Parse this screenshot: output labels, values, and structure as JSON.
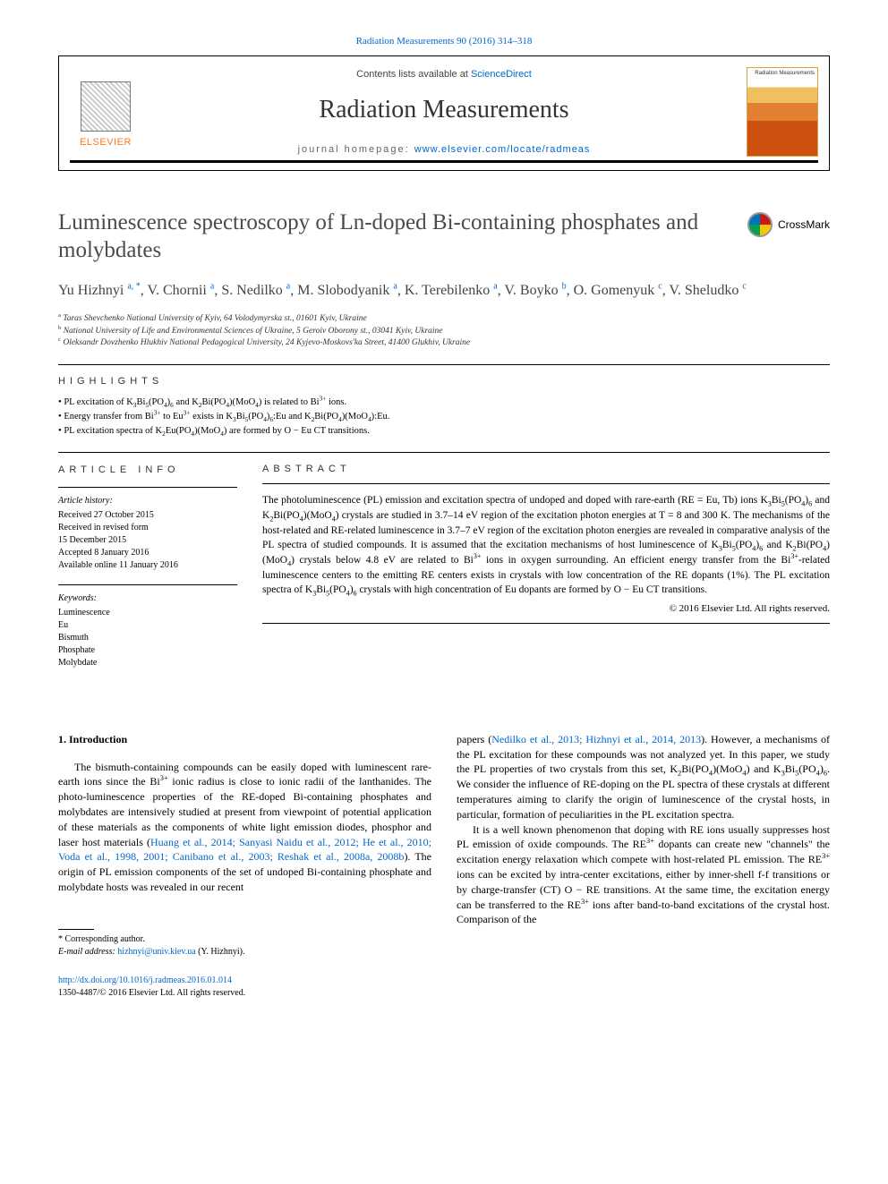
{
  "citation": "Radiation Measurements 90 (2016) 314–318",
  "header": {
    "contents_prefix": "Contents lists available at ",
    "contents_link": "ScienceDirect",
    "journal": "Radiation Measurements",
    "homepage_label": "journal homepage: ",
    "homepage_url": "www.elsevier.com/locate/radmeas",
    "publisher": "ELSEVIER",
    "cover_label": "Radiation Measurements"
  },
  "title": "Luminescence spectroscopy of Ln-doped Bi-containing phosphates and molybdates",
  "crossmark": "CrossMark",
  "authors_html": "Yu Hizhnyi <sup>a, *</sup>, V. Chornii <sup>a</sup>, S. Nedilko <sup>a</sup>, M. Slobodyanik <sup>a</sup>, K. Terebilenko <sup>a</sup>, V. Boyko <sup>b</sup>, O. Gomenyuk <sup>c</sup>, V. Sheludko <sup>c</sup>",
  "affiliations": {
    "a": "Taras Shevchenko National University of Kyiv, 64 Volodymyrska st., 01601 Kyiv, Ukraine",
    "b": "National University of Life and Environmental Sciences of Ukraine, 5 Geroiv Oborony st., 03041 Kyiv, Ukraine",
    "c": "Oleksandr Dovzhenko Hlukhiv National Pedagogical University, 24 Kyjevo-Moskovs'ka Street, 41400 Glukhiv, Ukraine"
  },
  "highlights_label": "HIGHLIGHTS",
  "highlights": [
    "PL excitation of K<sub>3</sub>Bi<sub>5</sub>(PO<sub>4</sub>)<sub>6</sub> and K<sub>2</sub>Bi(PO<sub>4</sub>)(MoO<sub>4</sub>) is related to Bi<sup>3+</sup> ions.",
    "Energy transfer from Bi<sup>3+</sup> to Eu<sup>3+</sup> exists in K<sub>3</sub>Bi<sub>5</sub>(PO<sub>4</sub>)<sub>6</sub>:Eu and K<sub>2</sub>Bi(PO<sub>4</sub>)(MoO<sub>4</sub>):Eu.",
    "PL excitation spectra of K<sub>2</sub>Eu(PO<sub>4</sub>)(MoO<sub>4</sub>) are formed by O − Eu CT transitions."
  ],
  "article_info_label": "ARTICLE INFO",
  "abstract_label": "ABSTRACT",
  "history_label": "Article history:",
  "history": [
    "Received 27 October 2015",
    "Received in revised form",
    "15 December 2015",
    "Accepted 8 January 2016",
    "Available online 11 January 2016"
  ],
  "keywords_label": "Keywords:",
  "keywords": [
    "Luminescence",
    "Eu",
    "Bismuth",
    "Phosphate",
    "Molybdate"
  ],
  "abstract_html": "The photoluminescence (PL) emission and excitation spectra of undoped and doped with rare-earth (RE = Eu, Tb) ions K<sub>3</sub>Bi<sub>5</sub>(PO<sub>4</sub>)<sub>6</sub> and K<sub>2</sub>Bi(PO<sub>4</sub>)(MoO<sub>4</sub>) crystals are studied in 3.7–14 eV region of the excitation photon energies at T = 8 and 300 K. The mechanisms of the host-related and RE-related luminescence in 3.7–7 eV region of the excitation photon energies are revealed in comparative analysis of the PL spectra of studied compounds. It is assumed that the excitation mechanisms of host luminescence of K<sub>3</sub>Bi<sub>5</sub>(PO<sub>4</sub>)<sub>6</sub> and K<sub>2</sub>Bi(PO<sub>4</sub>) (MoO<sub>4</sub>) crystals below 4.8 eV are related to Bi<sup>3+</sup> ions in oxygen surrounding. An efficient energy transfer from the Bi<sup>3+</sup>-related luminescence centers to the emitting RE centers exists in crystals with low concentration of the RE dopants (1%). The PL excitation spectra of K<sub>3</sub>Bi<sub>5</sub>(PO<sub>4</sub>)<sub>6</sub> crystals with high concentration of Eu dopants are formed by O − Eu CT transitions.",
  "rights": "© 2016 Elsevier Ltd. All rights reserved.",
  "intro_heading": "1.  Introduction",
  "intro_left_html": "The bismuth-containing compounds can be easily doped with luminescent rare-earth ions since the Bi<sup>3+</sup> ionic radius is close to ionic radii of the lanthanides. The photo-luminescence properties of the RE-doped Bi-containing phosphates and molybdates are intensively studied at present from viewpoint of potential application of these materials as the components of white light emission diodes, phosphor and laser host materials (<a href='#'>Huang et al., 2014; Sanyasi Naidu et al., 2012; He et al., 2010; Voda et al., 1998, 2001; Canibano et al., 2003; Reshak et al., 2008a, 2008b</a>). The origin of PL emission components of the set of undoped Bi-containing phosphate and molybdate hosts was revealed in our recent",
  "intro_right_1_html": "papers (<a href='#'>Nedilko et al., 2013; Hizhnyi et al., 2014, 2013</a>). However, a mechanisms of the PL excitation for these compounds was not analyzed yet. In this paper, we study the PL properties of two crystals from this set, K<sub>2</sub>Bi(PO<sub>4</sub>)(MoO<sub>4</sub>) and K<sub>3</sub>Bi<sub>5</sub>(PO<sub>4</sub>)<sub>6</sub>. We consider the influence of RE-doping on the PL spectra of these crystals at different temperatures aiming to clarify the origin of luminescence of the crystal hosts, in particular, formation of peculiarities in the PL excitation spectra.",
  "intro_right_2_html": "It is a well known phenomenon that doping with RE ions usually suppresses host PL emission of oxide compounds. The RE<sup>3+</sup> dopants can create new \"channels\" the excitation energy relaxation which compete with host-related PL emission. The RE<sup>3+</sup> ions can be excited by intra-center excitations, either by inner-shell f-f transitions or by charge-transfer (CT) O − RE transitions. At the same time, the excitation energy can be transferred to the RE<sup>3+</sup> ions after band-to-band excitations of the crystal host. Comparison of the",
  "corr_label": "* Corresponding author.",
  "email_label": "E-mail address: ",
  "email": "hizhnyi@univ.kiev.ua",
  "email_suffix": " (Y. Hizhnyi).",
  "doi": "http://dx.doi.org/10.1016/j.radmeas.2016.01.014",
  "issn_line": "1350-4487/© 2016 Elsevier Ltd. All rights reserved."
}
